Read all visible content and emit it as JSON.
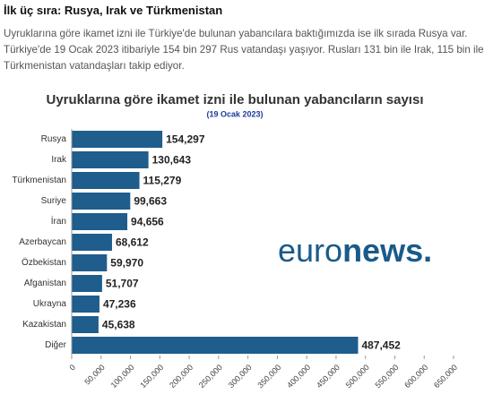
{
  "heading": "İlk üç sıra: Rusya, Irak ve Türkmenistan",
  "paragraph": "Uyruklarına göre ikamet izni ile Türkiye'de bulunan yabancılara baktığımızda ise ilk sırada Rusya var. Türkiye'de 19 Ocak 2023 itibariyle 154 bin 297 Rus vatandaşı yaşıyor. Rusları 131 bin ile Irak, 115 bin ile Türkmenistan vatandaşları takip ediyor.",
  "chart_data": {
    "type": "hbar",
    "title": "Uyruklarına göre ikamet izni ile bulunan yabancıların sayısı",
    "subtitle": "(19 Ocak 2023)",
    "categories": [
      "Rusya",
      "Irak",
      "Türkmenistan",
      "Suriye",
      "İran",
      "Azerbaycan",
      "Özbekistan",
      "Afganistan",
      "Ukrayna",
      "Kazakistan",
      "Diğer"
    ],
    "values": [
      154297,
      130643,
      115279,
      99663,
      94656,
      68612,
      59970,
      51707,
      47236,
      45638,
      487452
    ],
    "value_labels": [
      "154,297",
      "130,643",
      "115,279",
      "99,663",
      "94,656",
      "68,612",
      "59,970",
      "51,707",
      "47,236",
      "45,638",
      "487,452"
    ],
    "color": "#1f5d8c",
    "xlim": [
      0,
      650000
    ],
    "xticks": [
      0,
      {
        "value": 50000,
        "label": "50,000"
      },
      {
        "value": 100000,
        "label": "100,000"
      },
      {
        "value": 150000,
        "label": "150,000"
      },
      {
        "value": 200000,
        "label": "200,000"
      },
      {
        "value": 250000,
        "label": "250,000"
      },
      {
        "value": 300000,
        "label": "300,000"
      },
      {
        "value": 350000,
        "label": "350,000"
      },
      {
        "value": 400000,
        "label": "400,000"
      },
      {
        "value": 450000,
        "label": "450,000"
      },
      {
        "value": 500000,
        "label": "500,000"
      },
      {
        "value": 550000,
        "label": "550,000"
      },
      {
        "value": 600000,
        "label": "600,000"
      },
      {
        "value": 650000,
        "label": "650,000"
      }
    ],
    "logo_parts": [
      "euro",
      "news",
      "."
    ]
  }
}
